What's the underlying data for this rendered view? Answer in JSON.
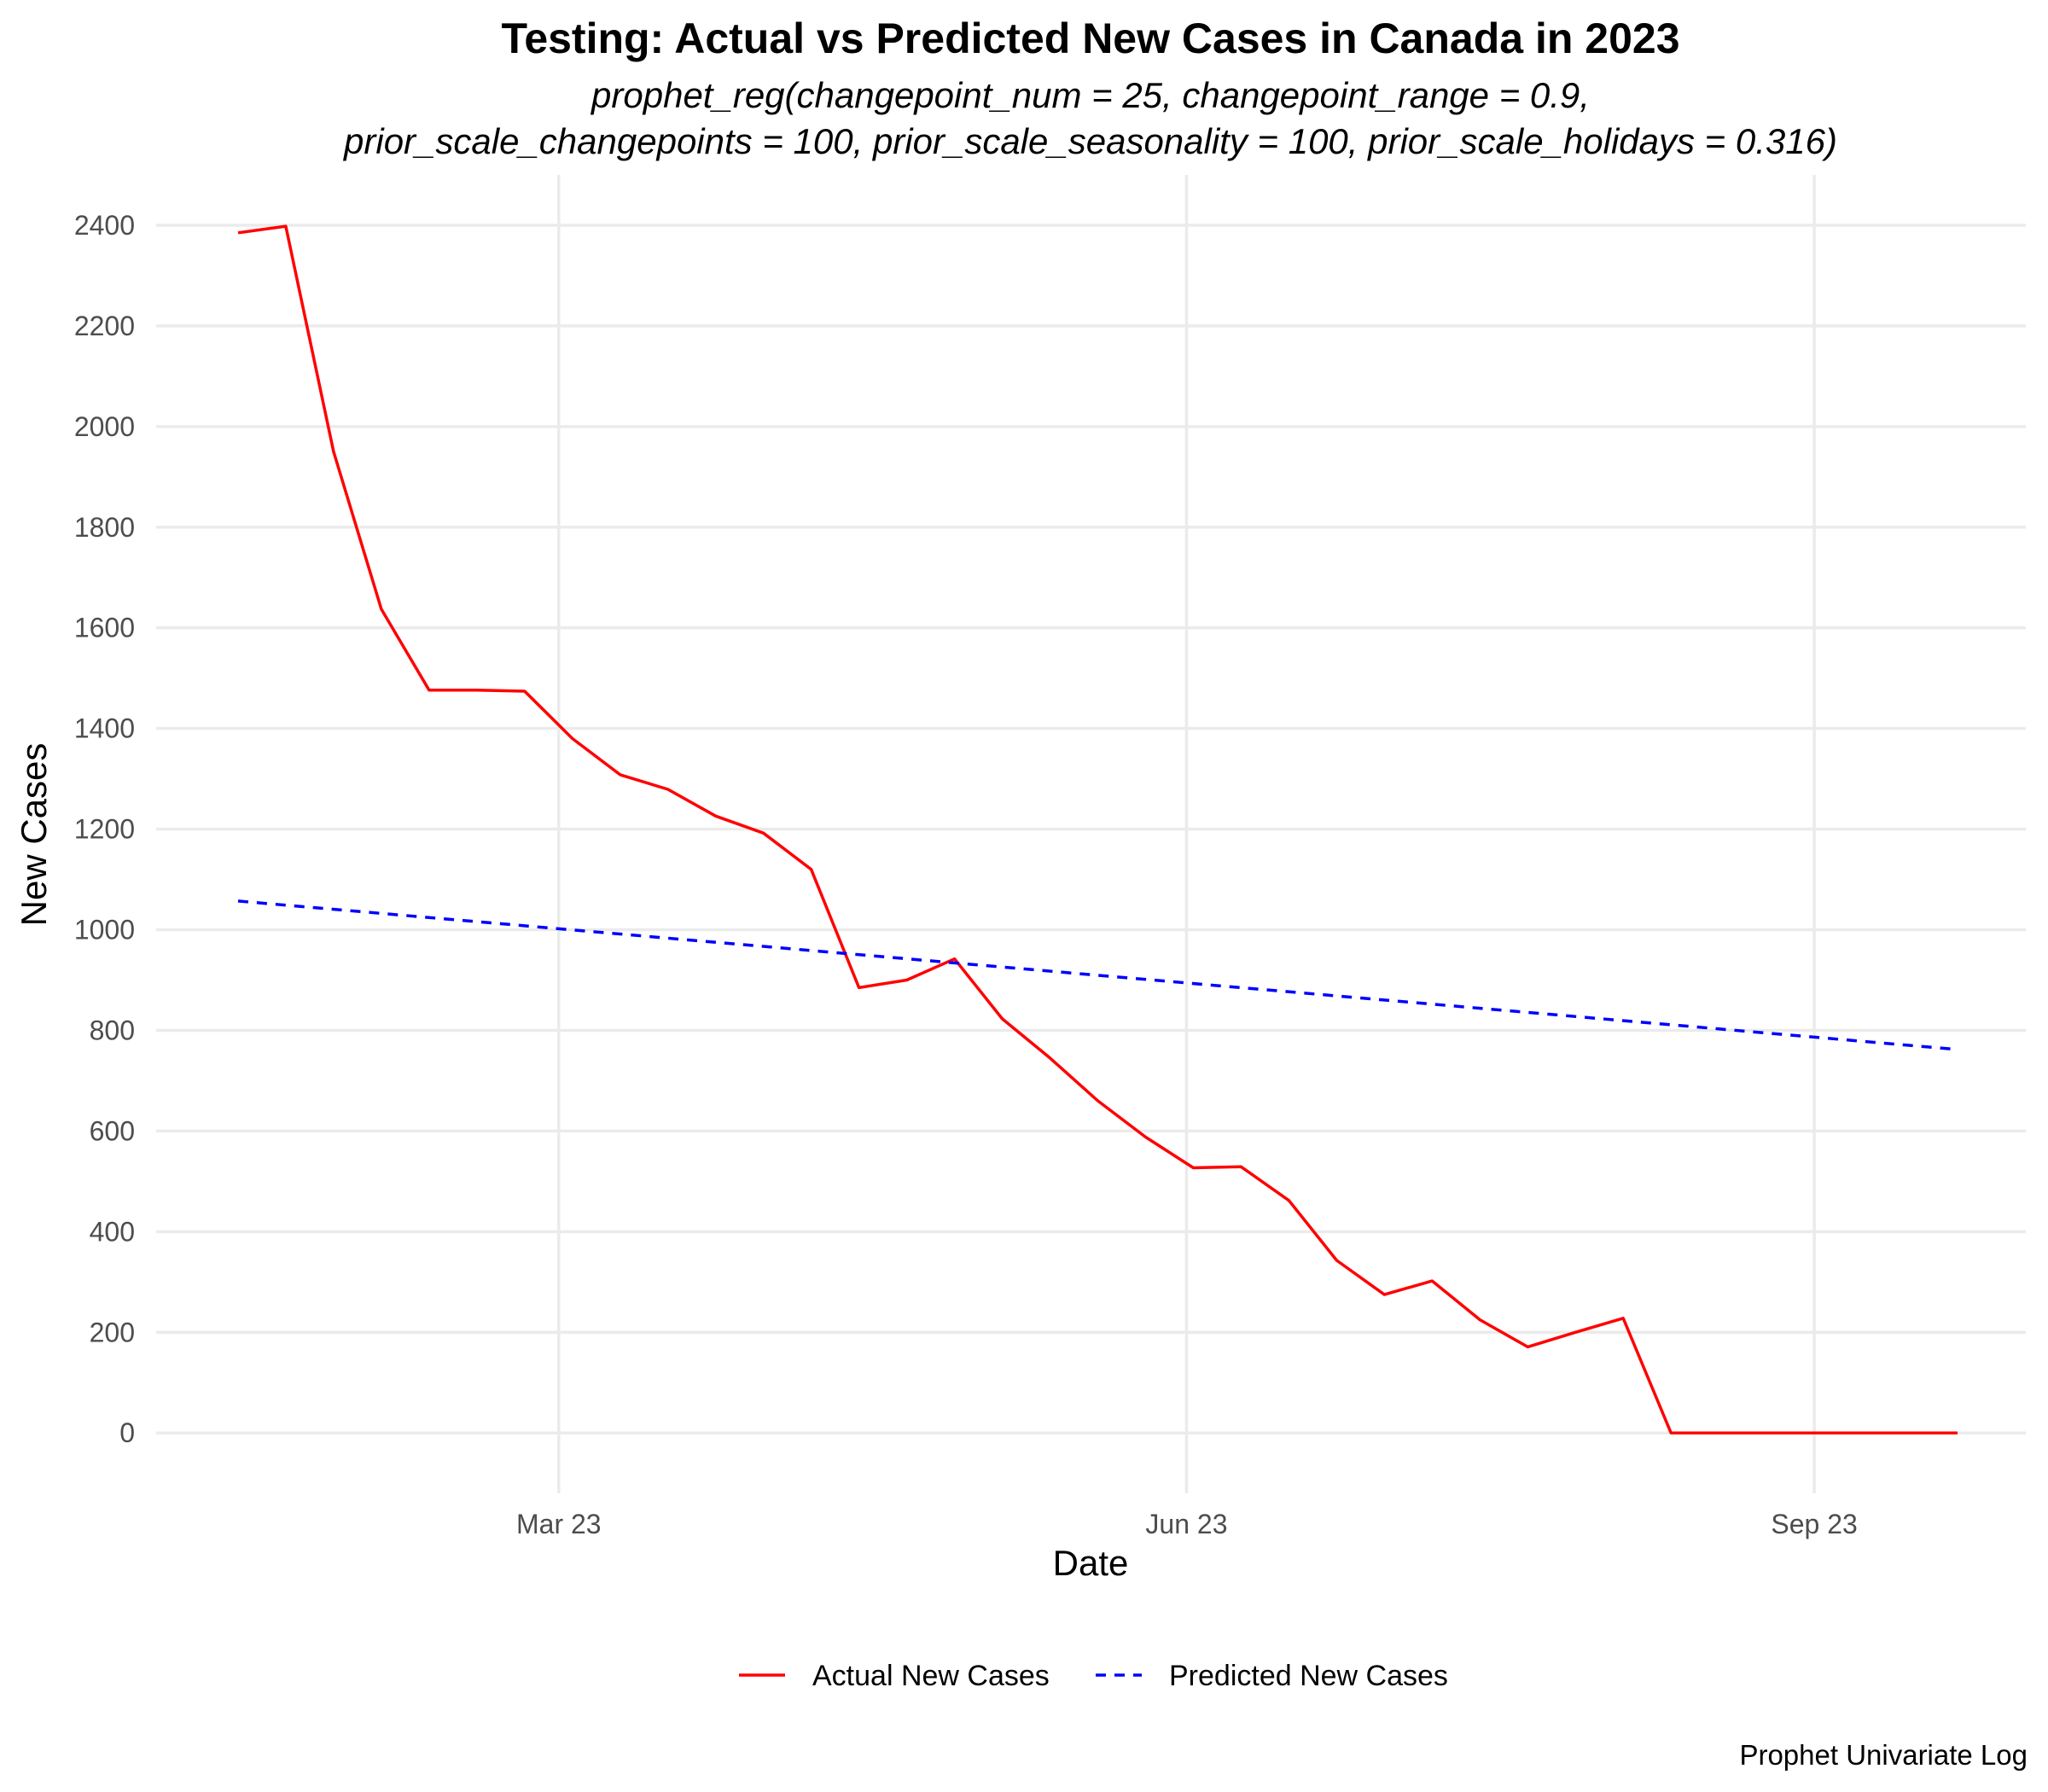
{
  "chart_data": {
    "type": "line",
    "title": "Testing: Actual vs Predicted New Cases in Canada in 2023",
    "subtitle_lines": [
      "prophet_reg(changepoint_num = 25, changepoint_range = 0.9,",
      "prior_scale_changepoints = 100, prior_scale_seasonality = 100, prior_scale_holidays = 0.316)"
    ],
    "xlabel": "Date",
    "ylabel": "New Cases",
    "caption": "Prophet Univariate Log",
    "x_type": "date",
    "xlim": [
      "2023-01-01",
      "2023-10-02"
    ],
    "ylim": [
      -120,
      2500
    ],
    "x_ticks": [
      {
        "date": "2023-03-01",
        "label": "Mar 23"
      },
      {
        "date": "2023-06-01",
        "label": "Jun 23"
      },
      {
        "date": "2023-09-01",
        "label": "Sep 23"
      }
    ],
    "y_ticks": [
      0,
      200,
      400,
      600,
      800,
      1000,
      1200,
      1400,
      1600,
      1800,
      2000,
      2200,
      2400
    ],
    "grid": true,
    "legend_position": "bottom",
    "series": [
      {
        "name": "Actual New Cases",
        "color": "#ff0000",
        "dash": "solid",
        "x": [
          "2023-01-13",
          "2023-01-20",
          "2023-01-27",
          "2023-02-03",
          "2023-02-10",
          "2023-02-17",
          "2023-02-24",
          "2023-03-03",
          "2023-03-10",
          "2023-03-17",
          "2023-03-24",
          "2023-03-31",
          "2023-04-07",
          "2023-04-14",
          "2023-04-21",
          "2023-04-28",
          "2023-05-05",
          "2023-05-12",
          "2023-05-19",
          "2023-05-26",
          "2023-06-02",
          "2023-06-09",
          "2023-06-16",
          "2023-06-23",
          "2023-06-30",
          "2023-07-07",
          "2023-07-14",
          "2023-07-21",
          "2023-07-28",
          "2023-08-04",
          "2023-08-11",
          "2023-08-18",
          "2023-08-25",
          "2023-09-01",
          "2023-09-08",
          "2023-09-15",
          "2023-09-22"
        ],
        "values": [
          2385,
          2398,
          1950,
          1637,
          1476,
          1476,
          1474,
          1380,
          1308,
          1279,
          1226,
          1192,
          1120,
          885,
          900,
          942,
          823,
          745,
          660,
          588,
          527,
          529,
          462,
          343,
          275,
          302,
          225,
          171,
          200,
          228,
          0,
          0,
          0,
          0,
          0,
          0,
          0
        ]
      },
      {
        "name": "Predicted New Cases",
        "color": "#0000ff",
        "dash": "dashed",
        "x": [
          "2023-01-13",
          "2023-09-22"
        ],
        "values": [
          1057,
          762
        ]
      }
    ]
  }
}
